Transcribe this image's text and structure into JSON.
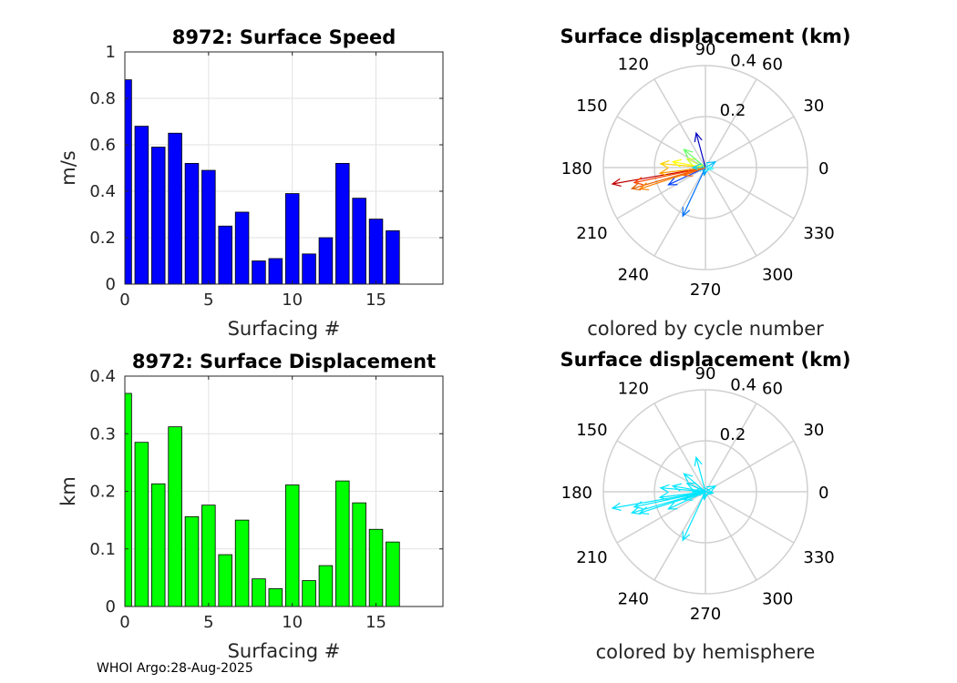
{
  "footer": "WHOI Argo:28-Aug-2025",
  "chart_data": [
    {
      "type": "bar",
      "title": "8972: Surface Speed",
      "xlabel": "Surfacing #",
      "ylabel": "m/s",
      "xlim": [
        0,
        19
      ],
      "ylim": [
        0,
        1
      ],
      "xticks": [
        0,
        5,
        10,
        15
      ],
      "yticks": [
        0,
        0.2,
        0.4,
        0.6,
        0.8,
        1
      ],
      "ytick_labels": [
        "0",
        "0.2",
        "0.4",
        "0.6",
        "0.8",
        "1"
      ],
      "color": "#0000ff",
      "x": [
        0,
        1,
        2,
        3,
        4,
        5,
        6,
        7,
        8,
        9,
        10,
        11,
        12,
        13,
        14,
        15,
        16
      ],
      "values": [
        0.88,
        0.68,
        0.59,
        0.65,
        0.52,
        0.49,
        0.25,
        0.31,
        0.1,
        0.11,
        0.39,
        0.13,
        0.2,
        0.52,
        0.37,
        0.28,
        0.23
      ]
    },
    {
      "type": "bar",
      "title": "8972: Surface Displacement",
      "xlabel": "Surfacing #",
      "ylabel": "km",
      "xlim": [
        0,
        19
      ],
      "ylim": [
        0,
        0.4
      ],
      "xticks": [
        0,
        5,
        10,
        15
      ],
      "yticks": [
        0,
        0.1,
        0.2,
        0.3,
        0.4
      ],
      "ytick_labels": [
        "0",
        "0.1",
        "0.2",
        "0.3",
        "0.4"
      ],
      "color": "#00ff00",
      "x": [
        0,
        1,
        2,
        3,
        4,
        5,
        6,
        7,
        8,
        9,
        10,
        11,
        12,
        13,
        14,
        15,
        16
      ],
      "values": [
        0.37,
        0.285,
        0.213,
        0.312,
        0.156,
        0.176,
        0.09,
        0.15,
        0.048,
        0.031,
        0.211,
        0.045,
        0.071,
        0.218,
        0.18,
        0.134,
        0.112
      ]
    },
    {
      "type": "polar-quiver",
      "title": "Surface displacement (km)",
      "caption": "colored by cycle number",
      "rmax": 0.4,
      "rticks": [
        0.2,
        0.4
      ],
      "rtick_labels": [
        "0.2",
        "0.4"
      ],
      "angle_ticks": [
        0,
        30,
        60,
        90,
        120,
        150,
        180,
        210,
        240,
        270,
        300,
        330
      ],
      "angle_labels": [
        "0",
        "30",
        "60",
        "90",
        "120",
        "150",
        "180",
        "210",
        "240",
        "270",
        "300",
        "330"
      ],
      "vectors": [
        {
          "angle": 190,
          "r": 0.37,
          "color": "#c00000"
        },
        {
          "angle": 192,
          "r": 0.285,
          "color": "#ff4000"
        },
        {
          "angle": 196,
          "r": 0.3,
          "color": "#e06000"
        },
        {
          "angle": 198,
          "r": 0.27,
          "color": "#ff8000"
        },
        {
          "angle": 187,
          "r": 0.18,
          "color": "#ffa000"
        },
        {
          "angle": 175,
          "r": 0.176,
          "color": "#ffd000"
        },
        {
          "angle": 170,
          "r": 0.13,
          "color": "#ffff00"
        },
        {
          "angle": 155,
          "r": 0.08,
          "color": "#c8ff30"
        },
        {
          "angle": 140,
          "r": 0.11,
          "color": "#60ff60"
        },
        {
          "angle": 105,
          "r": 0.14,
          "color": "#0000c0"
        },
        {
          "angle": 245,
          "r": 0.21,
          "color": "#0070ff"
        },
        {
          "angle": 205,
          "r": 0.16,
          "color": "#0040ff"
        },
        {
          "angle": 30,
          "r": 0.045,
          "color": "#00c0ff"
        },
        {
          "angle": 180,
          "r": 0.05,
          "color": "#00d0ff"
        },
        {
          "angle": 260,
          "r": 0.03,
          "color": "#00a0ff"
        },
        {
          "angle": 350,
          "r": 0.03,
          "color": "#40ffff"
        },
        {
          "angle": 200,
          "r": 0.09,
          "color": "#ff6000"
        }
      ]
    },
    {
      "type": "polar-quiver",
      "title": "Surface displacement (km)",
      "caption": "colored by hemisphere",
      "rmax": 0.4,
      "rticks": [
        0.2,
        0.4
      ],
      "rtick_labels": [
        "0.2",
        "0.4"
      ],
      "angle_ticks": [
        0,
        30,
        60,
        90,
        120,
        150,
        180,
        210,
        240,
        270,
        300,
        330
      ],
      "angle_labels": [
        "0",
        "30",
        "60",
        "90",
        "120",
        "150",
        "180",
        "210",
        "240",
        "270",
        "300",
        "330"
      ],
      "vectors": [
        {
          "angle": 190,
          "r": 0.37,
          "color": "#00e5ff"
        },
        {
          "angle": 192,
          "r": 0.285,
          "color": "#00e5ff"
        },
        {
          "angle": 196,
          "r": 0.3,
          "color": "#00e5ff"
        },
        {
          "angle": 198,
          "r": 0.27,
          "color": "#00e5ff"
        },
        {
          "angle": 187,
          "r": 0.18,
          "color": "#00e5ff"
        },
        {
          "angle": 175,
          "r": 0.176,
          "color": "#00e5ff"
        },
        {
          "angle": 170,
          "r": 0.13,
          "color": "#00e5ff"
        },
        {
          "angle": 155,
          "r": 0.08,
          "color": "#00e5ff"
        },
        {
          "angle": 140,
          "r": 0.11,
          "color": "#00e5ff"
        },
        {
          "angle": 105,
          "r": 0.14,
          "color": "#00e5ff"
        },
        {
          "angle": 245,
          "r": 0.21,
          "color": "#00e5ff"
        },
        {
          "angle": 205,
          "r": 0.16,
          "color": "#00e5ff"
        },
        {
          "angle": 30,
          "r": 0.045,
          "color": "#00e5ff"
        },
        {
          "angle": 180,
          "r": 0.05,
          "color": "#00e5ff"
        },
        {
          "angle": 260,
          "r": 0.03,
          "color": "#00e5ff"
        },
        {
          "angle": 350,
          "r": 0.03,
          "color": "#00e5ff"
        },
        {
          "angle": 200,
          "r": 0.09,
          "color": "#00e5ff"
        }
      ]
    }
  ]
}
